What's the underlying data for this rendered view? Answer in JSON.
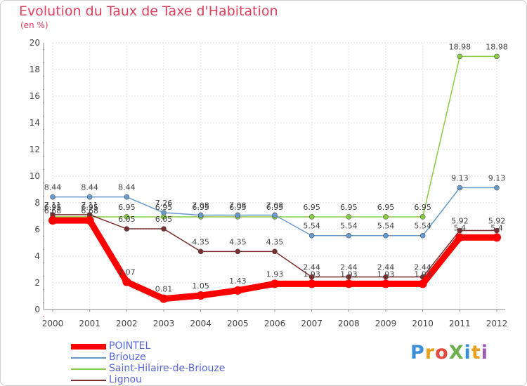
{
  "chart_data": {
    "type": "line",
    "title": "Evolution du Taux de Taxe d'Habitation",
    "ylabel": "(en %)",
    "xlabel": "",
    "x": [
      "2000",
      "2001",
      "2002",
      "2003",
      "2004",
      "2005",
      "2006",
      "2007",
      "2008",
      "2009",
      "2010",
      "2011",
      "2012"
    ],
    "ylim": [
      0,
      20
    ],
    "yticks": [
      0,
      2,
      4,
      6,
      8,
      10,
      12,
      14,
      16,
      18,
      20
    ],
    "grid": true,
    "legend_position": "bottom-left",
    "series": [
      {
        "name": "POINTEL",
        "color": "#ff0000",
        "values": [
          6.68,
          6.68,
          2.07,
          0.81,
          1.05,
          1.43,
          1.93,
          1.93,
          1.93,
          1.93,
          1.93,
          5.4,
          5.4
        ],
        "labels": [
          "6.68",
          "6.68",
          "2.07",
          "0.81",
          "1.05",
          "1.43",
          "1.93",
          "1.93",
          "1.93",
          "1.93",
          "1.93",
          "5.4",
          "5.4"
        ]
      },
      {
        "name": "Briouze",
        "color": "#6699cc",
        "values": [
          8.44,
          8.44,
          8.44,
          7.26,
          7.08,
          7.08,
          7.08,
          5.54,
          5.54,
          5.54,
          5.54,
          9.13,
          9.13
        ],
        "labels": [
          "8.44",
          "8.44",
          "8.44",
          "7.26",
          "7.08",
          "7.08",
          "7.08",
          "5.54",
          "5.54",
          "5.54",
          "5.54",
          "9.13",
          "9.13"
        ]
      },
      {
        "name": "Saint-Hilaire-de-Briouze",
        "color": "#88cc44",
        "values": [
          6.95,
          6.95,
          6.95,
          6.95,
          6.95,
          6.95,
          6.95,
          6.95,
          6.95,
          6.95,
          6.95,
          18.98,
          18.98
        ],
        "labels": [
          "6.95",
          "6.95",
          "6.95",
          "6.95",
          "6.95",
          "6.95",
          "6.95",
          "6.95",
          "6.95",
          "6.95",
          "6.95",
          "18.98",
          "18.98"
        ]
      },
      {
        "name": "Lignou",
        "color": "#7a2e2e",
        "values": [
          7.11,
          7.11,
          6.05,
          6.05,
          4.35,
          4.35,
          4.35,
          2.44,
          2.44,
          2.44,
          2.44,
          5.92,
          5.92
        ],
        "labels": [
          "7.11",
          "7.11",
          "6.05",
          "6.05",
          "4.35",
          "4.35",
          "4.35",
          "2.44",
          "2.44",
          "2.44",
          "2.44",
          "5.92",
          "5.92"
        ]
      }
    ]
  },
  "logo": {
    "text": "ProXiti"
  }
}
